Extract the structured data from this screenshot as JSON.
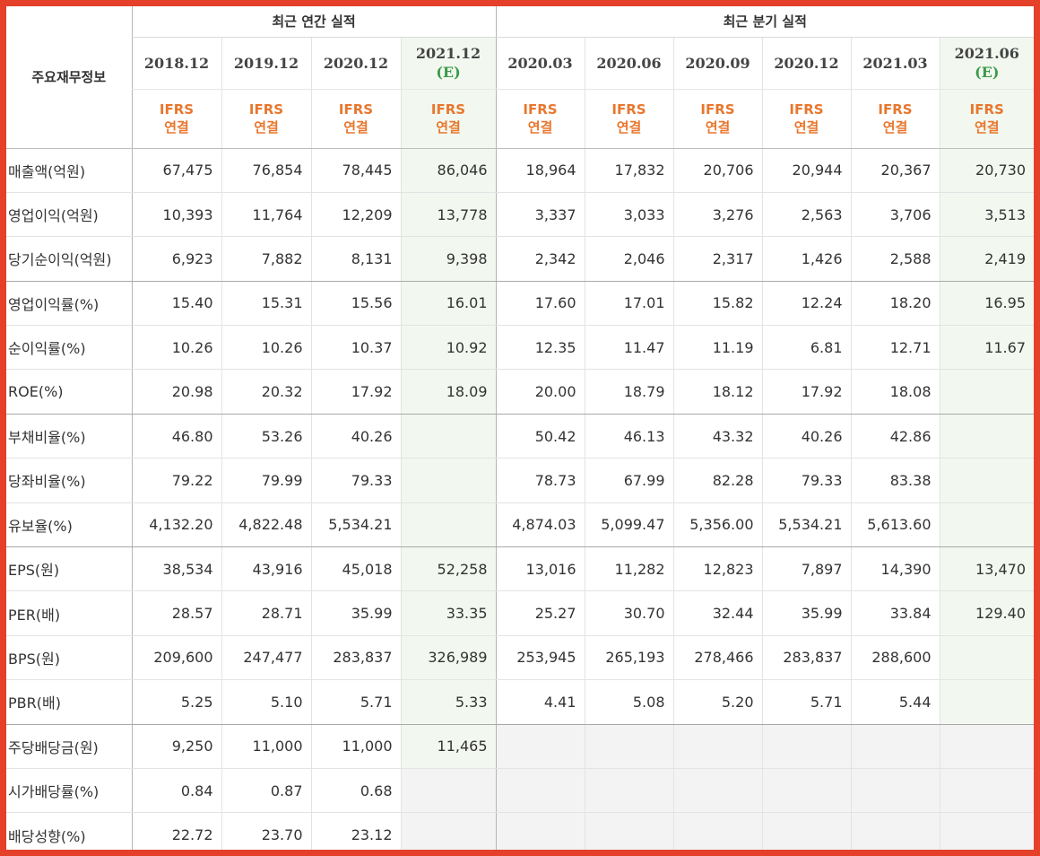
{
  "header": {
    "corner": "주요재무정보",
    "annual_title": "최근 연간 실적",
    "quarter_title": "최근 분기 실적",
    "columns": [
      {
        "line1": "2018.12",
        "line2": "",
        "ifrs1": "IFRS",
        "ifrs2": "연결"
      },
      {
        "line1": "2019.12",
        "line2": "",
        "ifrs1": "IFRS",
        "ifrs2": "연결"
      },
      {
        "line1": "2020.12",
        "line2": "",
        "ifrs1": "IFRS",
        "ifrs2": "연결"
      },
      {
        "line1": "2021.12",
        "line2": "(E)",
        "ifrs1": "IFRS",
        "ifrs2": "연결"
      },
      {
        "line1": "2020.03",
        "line2": "",
        "ifrs1": "IFRS",
        "ifrs2": "연결"
      },
      {
        "line1": "2020.06",
        "line2": "",
        "ifrs1": "IFRS",
        "ifrs2": "연결"
      },
      {
        "line1": "2020.09",
        "line2": "",
        "ifrs1": "IFRS",
        "ifrs2": "연결"
      },
      {
        "line1": "2020.12",
        "line2": "",
        "ifrs1": "IFRS",
        "ifrs2": "연결"
      },
      {
        "line1": "2021.03",
        "line2": "",
        "ifrs1": "IFRS",
        "ifrs2": "연결"
      },
      {
        "line1": "2021.06",
        "line2": "(E)",
        "ifrs1": "IFRS",
        "ifrs2": "연결"
      }
    ]
  },
  "rows": [
    {
      "label": "매출액(억원)",
      "values": [
        "67,475",
        "76,854",
        "78,445",
        "86,046",
        "18,964",
        "17,832",
        "20,706",
        "20,944",
        "20,367",
        "20,730"
      ]
    },
    {
      "label": "영업이익(억원)",
      "values": [
        "10,393",
        "11,764",
        "12,209",
        "13,778",
        "3,337",
        "3,033",
        "3,276",
        "2,563",
        "3,706",
        "3,513"
      ]
    },
    {
      "label": "당기순이익(억원)",
      "values": [
        "6,923",
        "7,882",
        "8,131",
        "9,398",
        "2,342",
        "2,046",
        "2,317",
        "1,426",
        "2,588",
        "2,419"
      ]
    },
    {
      "label": "영업이익률(%)",
      "values": [
        "15.40",
        "15.31",
        "15.56",
        "16.01",
        "17.60",
        "17.01",
        "15.82",
        "12.24",
        "18.20",
        "16.95"
      ]
    },
    {
      "label": "순이익률(%)",
      "values": [
        "10.26",
        "10.26",
        "10.37",
        "10.92",
        "12.35",
        "11.47",
        "11.19",
        "6.81",
        "12.71",
        "11.67"
      ]
    },
    {
      "label": "ROE(%)",
      "values": [
        "20.98",
        "20.32",
        "17.92",
        "18.09",
        "20.00",
        "18.79",
        "18.12",
        "17.92",
        "18.08",
        ""
      ]
    },
    {
      "label": "부채비율(%)",
      "values": [
        "46.80",
        "53.26",
        "40.26",
        "",
        "50.42",
        "46.13",
        "43.32",
        "40.26",
        "42.86",
        ""
      ]
    },
    {
      "label": "당좌비율(%)",
      "values": [
        "79.22",
        "79.99",
        "79.33",
        "",
        "78.73",
        "67.99",
        "82.28",
        "79.33",
        "83.38",
        ""
      ]
    },
    {
      "label": "유보율(%)",
      "values": [
        "4,132.20",
        "4,822.48",
        "5,534.21",
        "",
        "4,874.03",
        "5,099.47",
        "5,356.00",
        "5,534.21",
        "5,613.60",
        ""
      ]
    },
    {
      "label": "EPS(원)",
      "values": [
        "38,534",
        "43,916",
        "45,018",
        "52,258",
        "13,016",
        "11,282",
        "12,823",
        "7,897",
        "14,390",
        "13,470"
      ]
    },
    {
      "label": "PER(배)",
      "values": [
        "28.57",
        "28.71",
        "35.99",
        "33.35",
        "25.27",
        "30.70",
        "32.44",
        "35.99",
        "33.84",
        "129.40"
      ]
    },
    {
      "label": "BPS(원)",
      "values": [
        "209,600",
        "247,477",
        "283,837",
        "326,989",
        "253,945",
        "265,193",
        "278,466",
        "283,837",
        "288,600",
        ""
      ]
    },
    {
      "label": "PBR(배)",
      "values": [
        "5.25",
        "5.10",
        "5.71",
        "5.33",
        "4.41",
        "5.08",
        "5.20",
        "5.71",
        "5.44",
        ""
      ]
    },
    {
      "label": "주당배당금(원)",
      "values": [
        "9,250",
        "11,000",
        "11,000",
        "11,465",
        "",
        "",
        "",
        "",
        "",
        ""
      ]
    },
    {
      "label": "시가배당률(%)",
      "values": [
        "0.84",
        "0.87",
        "0.68",
        "",
        "",
        "",
        "",
        "",
        "",
        ""
      ]
    },
    {
      "label": "배당성향(%)",
      "values": [
        "22.72",
        "23.70",
        "23.12",
        "",
        "",
        "",
        "",
        "",
        "",
        ""
      ]
    }
  ],
  "colors": {
    "frame": "#e5402a",
    "ifrs": "#e8772e",
    "estimate_bg": "#f2f8ef",
    "estimate_text": "#3a9a4a"
  }
}
